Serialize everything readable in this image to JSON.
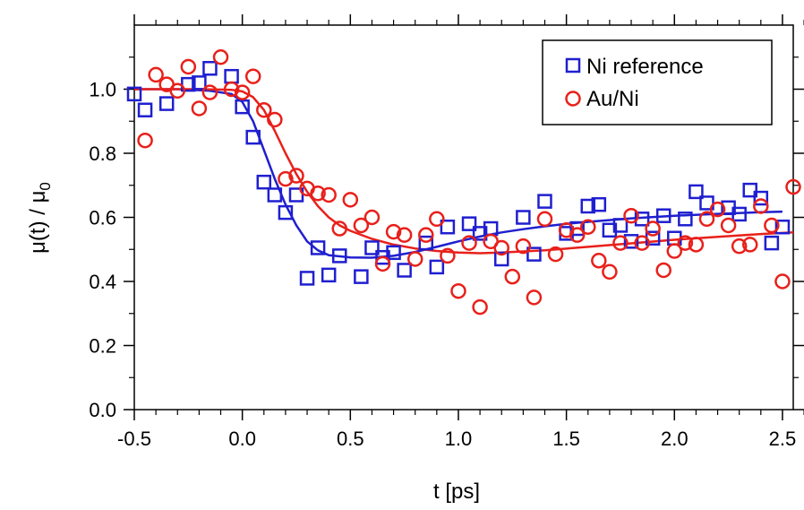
{
  "chart_data": {
    "type": "scatter",
    "xlabel": "t [ps]",
    "ylabel_main": "μ(t) / μ",
    "ylabel_sub": "0",
    "xlim": [
      -0.5,
      2.55
    ],
    "ylim": [
      0.0,
      1.2
    ],
    "xticks": [
      -0.5,
      0.0,
      0.5,
      1.0,
      1.5,
      2.0,
      2.5
    ],
    "xtick_labels": [
      "-0.5",
      "0.0",
      "0.5",
      "1.0",
      "1.5",
      "2.0",
      "2.5"
    ],
    "yticks": [
      0.0,
      0.2,
      0.4,
      0.6,
      0.8,
      1.0
    ],
    "ytick_labels": [
      "0.0",
      "0.2",
      "0.4",
      "0.6",
      "0.8",
      "1.0"
    ],
    "grid": false,
    "legend_position": "top-right",
    "series": [
      {
        "name": "Ni reference",
        "marker": "square",
        "color": "#1f1fd0",
        "points": [
          [
            -0.5,
            0.985
          ],
          [
            -0.45,
            0.935
          ],
          [
            -0.35,
            0.955
          ],
          [
            -0.25,
            1.015
          ],
          [
            -0.2,
            1.02
          ],
          [
            -0.15,
            1.065
          ],
          [
            -0.05,
            1.04
          ],
          [
            0.0,
            0.945
          ],
          [
            0.05,
            0.85
          ],
          [
            0.1,
            0.71
          ],
          [
            0.15,
            0.67
          ],
          [
            0.2,
            0.615
          ],
          [
            0.25,
            0.67
          ],
          [
            0.3,
            0.41
          ],
          [
            0.35,
            0.505
          ],
          [
            0.4,
            0.42
          ],
          [
            0.45,
            0.48
          ],
          [
            0.55,
            0.415
          ],
          [
            0.6,
            0.505
          ],
          [
            0.65,
            0.475
          ],
          [
            0.7,
            0.49
          ],
          [
            0.75,
            0.435
          ],
          [
            0.85,
            0.52
          ],
          [
            0.9,
            0.445
          ],
          [
            0.95,
            0.57
          ],
          [
            1.05,
            0.58
          ],
          [
            1.1,
            0.55
          ],
          [
            1.15,
            0.565
          ],
          [
            1.2,
            0.47
          ],
          [
            1.3,
            0.6
          ],
          [
            1.35,
            0.485
          ],
          [
            1.4,
            0.65
          ],
          [
            1.5,
            0.55
          ],
          [
            1.55,
            0.565
          ],
          [
            1.6,
            0.635
          ],
          [
            1.65,
            0.64
          ],
          [
            1.7,
            0.56
          ],
          [
            1.75,
            0.575
          ],
          [
            1.8,
            0.525
          ],
          [
            1.85,
            0.595
          ],
          [
            1.9,
            0.535
          ],
          [
            1.95,
            0.605
          ],
          [
            2.0,
            0.535
          ],
          [
            2.05,
            0.595
          ],
          [
            2.1,
            0.68
          ],
          [
            2.15,
            0.645
          ],
          [
            2.25,
            0.63
          ],
          [
            2.3,
            0.61
          ],
          [
            2.35,
            0.685
          ],
          [
            2.4,
            0.66
          ],
          [
            2.45,
            0.52
          ],
          [
            2.5,
            0.57
          ]
        ],
        "fit": [
          [
            -0.5,
            1.0
          ],
          [
            -0.3,
            1.0
          ],
          [
            -0.15,
            0.995
          ],
          [
            -0.05,
            0.985
          ],
          [
            0.0,
            0.96
          ],
          [
            0.05,
            0.9
          ],
          [
            0.1,
            0.81
          ],
          [
            0.15,
            0.72
          ],
          [
            0.2,
            0.64
          ],
          [
            0.25,
            0.575
          ],
          [
            0.3,
            0.525
          ],
          [
            0.35,
            0.497
          ],
          [
            0.4,
            0.482
          ],
          [
            0.5,
            0.475
          ],
          [
            0.6,
            0.474
          ],
          [
            0.7,
            0.48
          ],
          [
            0.8,
            0.492
          ],
          [
            0.9,
            0.508
          ],
          [
            1.0,
            0.525
          ],
          [
            1.1,
            0.54
          ],
          [
            1.2,
            0.553
          ],
          [
            1.3,
            0.563
          ],
          [
            1.4,
            0.572
          ],
          [
            1.5,
            0.58
          ],
          [
            1.6,
            0.586
          ],
          [
            1.8,
            0.597
          ],
          [
            2.0,
            0.605
          ],
          [
            2.2,
            0.611
          ],
          [
            2.4,
            0.616
          ],
          [
            2.5,
            0.618
          ]
        ]
      },
      {
        "name": "Au/Ni",
        "marker": "circle",
        "color": "#e8201a",
        "points": [
          [
            -0.45,
            0.84
          ],
          [
            -0.4,
            1.045
          ],
          [
            -0.35,
            1.015
          ],
          [
            -0.3,
            0.995
          ],
          [
            -0.25,
            1.07
          ],
          [
            -0.2,
            0.94
          ],
          [
            -0.15,
            0.99
          ],
          [
            -0.1,
            1.1
          ],
          [
            -0.05,
            1.0
          ],
          [
            0.0,
            0.99
          ],
          [
            0.05,
            1.04
          ],
          [
            0.1,
            0.935
          ],
          [
            0.15,
            0.905
          ],
          [
            0.2,
            0.72
          ],
          [
            0.25,
            0.73
          ],
          [
            0.3,
            0.69
          ],
          [
            0.35,
            0.675
          ],
          [
            0.4,
            0.67
          ],
          [
            0.45,
            0.565
          ],
          [
            0.5,
            0.655
          ],
          [
            0.55,
            0.575
          ],
          [
            0.6,
            0.6
          ],
          [
            0.65,
            0.455
          ],
          [
            0.7,
            0.555
          ],
          [
            0.75,
            0.545
          ],
          [
            0.8,
            0.47
          ],
          [
            0.85,
            0.545
          ],
          [
            0.9,
            0.595
          ],
          [
            0.95,
            0.48
          ],
          [
            1.0,
            0.37
          ],
          [
            1.05,
            0.52
          ],
          [
            1.1,
            0.32
          ],
          [
            1.15,
            0.525
          ],
          [
            1.2,
            0.505
          ],
          [
            1.25,
            0.415
          ],
          [
            1.3,
            0.51
          ],
          [
            1.35,
            0.35
          ],
          [
            1.4,
            0.595
          ],
          [
            1.45,
            0.485
          ],
          [
            1.5,
            0.56
          ],
          [
            1.55,
            0.545
          ],
          [
            1.6,
            0.57
          ],
          [
            1.65,
            0.465
          ],
          [
            1.7,
            0.43
          ],
          [
            1.75,
            0.52
          ],
          [
            1.8,
            0.605
          ],
          [
            1.85,
            0.52
          ],
          [
            1.9,
            0.565
          ],
          [
            1.95,
            0.435
          ],
          [
            2.0,
            0.495
          ],
          [
            2.05,
            0.52
          ],
          [
            2.1,
            0.515
          ],
          [
            2.15,
            0.595
          ],
          [
            2.2,
            0.625
          ],
          [
            2.25,
            0.575
          ],
          [
            2.3,
            0.51
          ],
          [
            2.35,
            0.515
          ],
          [
            2.4,
            0.635
          ],
          [
            2.45,
            0.575
          ],
          [
            2.5,
            0.4
          ],
          [
            2.55,
            0.695
          ]
        ],
        "fit": [
          [
            -0.5,
            1.0
          ],
          [
            -0.2,
            1.0
          ],
          [
            -0.05,
            0.998
          ],
          [
            0.0,
            0.993
          ],
          [
            0.05,
            0.975
          ],
          [
            0.1,
            0.935
          ],
          [
            0.15,
            0.87
          ],
          [
            0.2,
            0.8
          ],
          [
            0.25,
            0.735
          ],
          [
            0.3,
            0.68
          ],
          [
            0.35,
            0.635
          ],
          [
            0.4,
            0.6
          ],
          [
            0.45,
            0.575
          ],
          [
            0.5,
            0.558
          ],
          [
            0.6,
            0.533
          ],
          [
            0.7,
            0.515
          ],
          [
            0.8,
            0.503
          ],
          [
            0.9,
            0.495
          ],
          [
            1.0,
            0.49
          ],
          [
            1.1,
            0.488
          ],
          [
            1.2,
            0.49
          ],
          [
            1.4,
            0.497
          ],
          [
            1.6,
            0.508
          ],
          [
            1.8,
            0.519
          ],
          [
            2.0,
            0.53
          ],
          [
            2.2,
            0.539
          ],
          [
            2.4,
            0.548
          ],
          [
            2.55,
            0.553
          ]
        ]
      }
    ]
  }
}
